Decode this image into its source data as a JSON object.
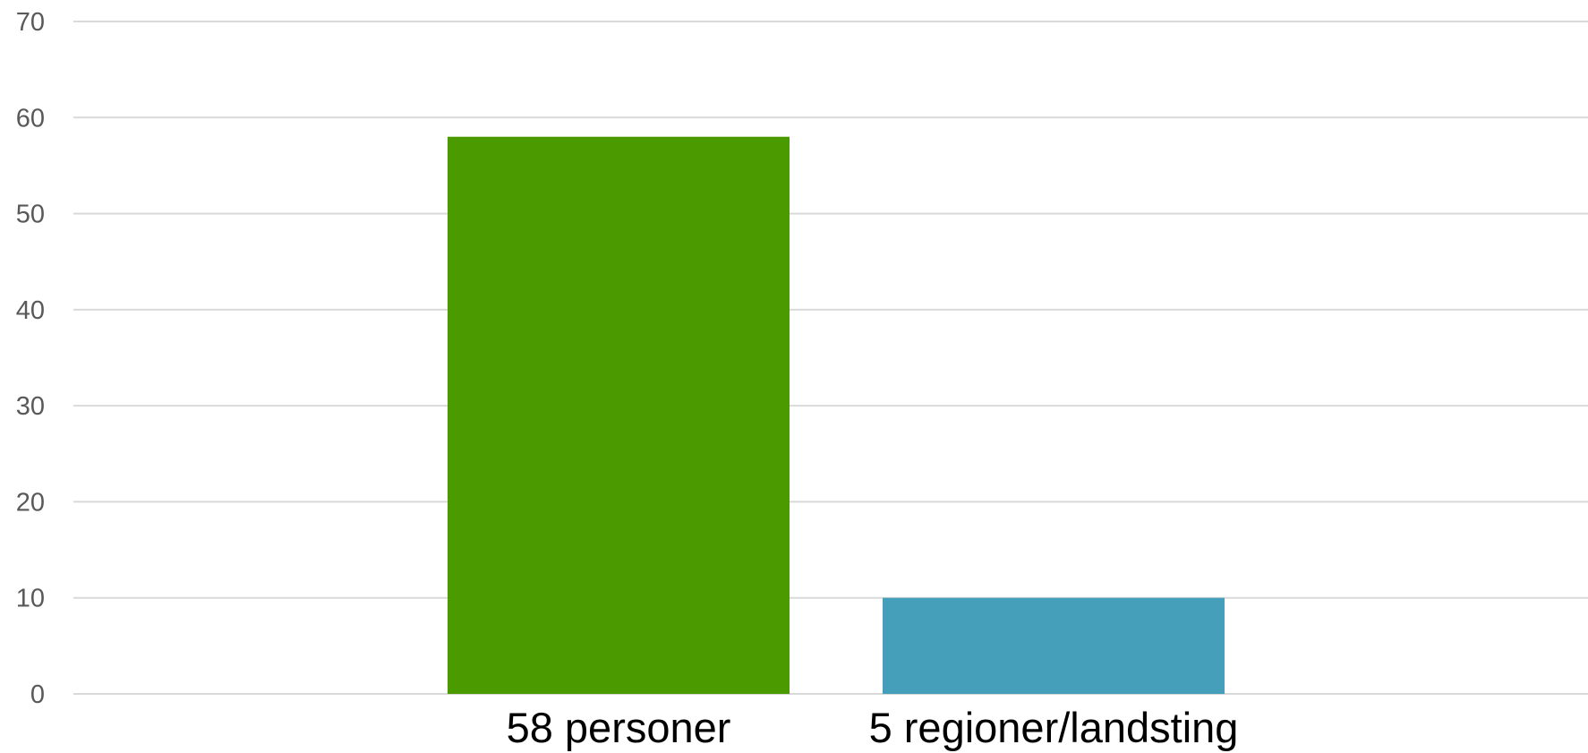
{
  "chart_data": {
    "type": "bar",
    "title": "",
    "xlabel": "",
    "ylabel": "",
    "categories": [
      "58 personer",
      "5 regioner/landsting"
    ],
    "values": [
      58,
      10
    ],
    "colors": [
      "#4a9a00",
      "#459fba"
    ],
    "ylim": [
      0,
      70
    ],
    "yticks": [
      0,
      10,
      20,
      30,
      40,
      50,
      60,
      70
    ],
    "grid": true,
    "legend": "none"
  }
}
